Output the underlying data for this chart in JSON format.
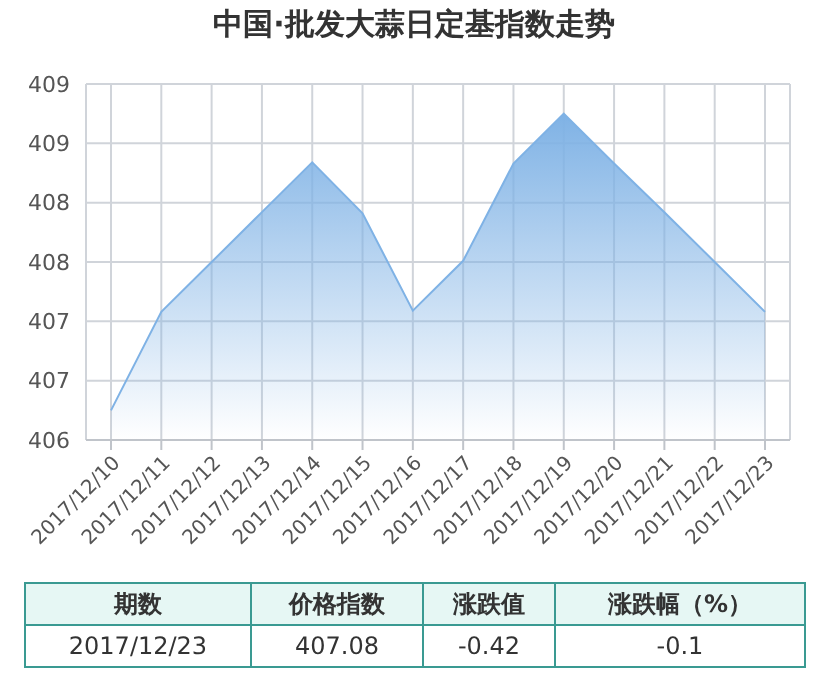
{
  "chart_data": {
    "type": "area",
    "title": "中国·批发大蒜日定基指数走势",
    "categories": [
      "2017/12/10",
      "2017/12/11",
      "2017/12/12",
      "2017/12/13",
      "2017/12/14",
      "2017/12/15",
      "2017/12/16",
      "2017/12/17",
      "2017/12/18",
      "2017/12/19",
      "2017/12/20",
      "2017/12/21",
      "2017/12/22",
      "2017/12/23"
    ],
    "series": [
      {
        "color": "#7fb2e5",
        "values": [
          406.25,
          407.08,
          407.5,
          407.92,
          408.34,
          407.91,
          407.09,
          407.51,
          408.33,
          408.75,
          408.33,
          407.92,
          407.5,
          407.08
        ]
      }
    ],
    "ylim": [
      406,
      409
    ],
    "yticks": [
      406,
      {
        "value": 406.5,
        "label": "407"
      },
      407,
      {
        "value": 407.5,
        "label": "408"
      },
      408,
      {
        "value": 408.5,
        "label": "409"
      },
      409
    ],
    "grid": true,
    "marker": "none",
    "annotations": [
      "期数",
      "价格指数",
      "涨跌值",
      "涨跌幅（%）",
      "2017/12/23",
      "407.08",
      "-0.42",
      "-0.1"
    ]
  }
}
